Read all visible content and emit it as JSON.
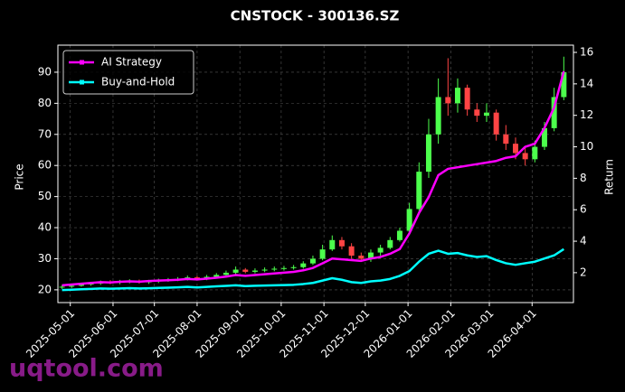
{
  "chart_data": {
    "type": "candlestick",
    "title": "CNSTOCK - 300136.SZ",
    "ylabel": "Price",
    "y2label": "Return",
    "watermark": "uqtool.com",
    "x": [
      "2025-04-25",
      "2025-05-02",
      "2025-05-09",
      "2025-05-16",
      "2025-05-23",
      "2025-05-30",
      "2025-06-06",
      "2025-06-13",
      "2025-06-20",
      "2025-06-27",
      "2025-07-04",
      "2025-07-11",
      "2025-07-18",
      "2025-07-25",
      "2025-08-01",
      "2025-08-08",
      "2025-08-15",
      "2025-08-22",
      "2025-08-29",
      "2025-09-05",
      "2025-09-12",
      "2025-09-19",
      "2025-09-26",
      "2025-10-03",
      "2025-10-10",
      "2025-10-17",
      "2025-10-24",
      "2025-10-31",
      "2025-11-07",
      "2025-11-14",
      "2025-11-21",
      "2025-11-28",
      "2025-12-05",
      "2025-12-12",
      "2025-12-19",
      "2025-12-26",
      "2026-01-02",
      "2026-01-09",
      "2026-01-16",
      "2026-01-23",
      "2026-01-30",
      "2026-02-06",
      "2026-02-13",
      "2026-02-20",
      "2026-02-27",
      "2026-03-06",
      "2026-03-13",
      "2026-03-20",
      "2026-03-27",
      "2026-04-03",
      "2026-04-10",
      "2026-04-17",
      "2026-04-24"
    ],
    "open": [
      20.8,
      21,
      21.3,
      21.8,
      22,
      22.5,
      22.3,
      22.6,
      22.8,
      22.4,
      22.7,
      23,
      23.2,
      23.5,
      24,
      23.6,
      24.2,
      24.8,
      25.5,
      26.5,
      25.8,
      26.2,
      26.5,
      26.8,
      27,
      27.3,
      28.5,
      30,
      33,
      36,
      34,
      31,
      30,
      32,
      33.5,
      36,
      39,
      46,
      58,
      70,
      82,
      80,
      85,
      78,
      76,
      77,
      70,
      67,
      64,
      62,
      66,
      72,
      82
    ],
    "high": [
      21.5,
      21.8,
      22.3,
      22.6,
      23,
      23.1,
      23.2,
      23.4,
      23.3,
      23.2,
      23.6,
      23.8,
      24.1,
      24.6,
      24.5,
      24.8,
      25.4,
      26.2,
      27.5,
      27,
      26.9,
      27.2,
      27.5,
      27.7,
      28,
      29.2,
      31,
      34.5,
      37.5,
      37,
      35,
      32,
      33,
      34.5,
      37,
      40,
      48,
      61,
      75,
      88,
      94.5,
      88,
      86,
      80,
      80,
      78,
      73,
      69,
      66,
      68,
      74,
      85,
      95
    ],
    "low": [
      20.3,
      20.6,
      21,
      21.3,
      21.6,
      21.8,
      21.8,
      22.1,
      22,
      21.9,
      22.2,
      22.6,
      22.8,
      23,
      23.2,
      23.1,
      23.7,
      24.3,
      25,
      25.3,
      25.3,
      25.7,
      26,
      26.2,
      26.5,
      26.8,
      28,
      29.5,
      32.5,
      33,
      30,
      29.5,
      29,
      31,
      33,
      35.5,
      38.5,
      45,
      56,
      67,
      76,
      77,
      76,
      74,
      74,
      68,
      65,
      62,
      60,
      61,
      65,
      71,
      81
    ],
    "close": [
      21,
      21.3,
      21.8,
      22,
      22.5,
      22.3,
      22.6,
      22.8,
      22.4,
      22.7,
      23,
      23.2,
      23.5,
      24,
      23.6,
      24.2,
      24.8,
      25.5,
      26.5,
      25.8,
      26.2,
      26.5,
      26.8,
      27,
      27.3,
      28.5,
      30,
      33,
      36,
      34,
      31,
      30,
      32,
      33.5,
      36,
      39,
      46,
      58,
      70,
      82,
      80,
      85,
      78,
      76,
      77,
      70,
      67,
      64,
      62,
      66,
      72,
      82,
      90
    ],
    "up_color": "#4cff4c",
    "down_color": "#ff4444",
    "series": [
      {
        "name": "AI Strategy",
        "color": "#ff00ff",
        "axis": "y2",
        "values": [
          1.2,
          1.25,
          1.3,
          1.35,
          1.4,
          1.38,
          1.42,
          1.45,
          1.43,
          1.47,
          1.5,
          1.52,
          1.55,
          1.6,
          1.57,
          1.62,
          1.68,
          1.75,
          1.85,
          1.8,
          1.85,
          1.9,
          1.95,
          2.0,
          2.05,
          2.15,
          2.3,
          2.6,
          2.9,
          2.85,
          2.8,
          2.75,
          2.9,
          3.0,
          3.2,
          3.5,
          4.5,
          5.8,
          6.8,
          8.2,
          8.6,
          8.7,
          8.8,
          8.9,
          9.0,
          9.1,
          9.3,
          9.4,
          10.0,
          10.2,
          11.2,
          12.5,
          14.8
        ]
      },
      {
        "name": "Buy-and-Hold",
        "color": "#00ffff",
        "axis": "y2",
        "values": [
          0.9,
          0.92,
          0.95,
          0.97,
          1.0,
          0.98,
          1.0,
          1.02,
          1.0,
          1.01,
          1.03,
          1.05,
          1.07,
          1.1,
          1.06,
          1.1,
          1.13,
          1.16,
          1.2,
          1.15,
          1.17,
          1.18,
          1.2,
          1.21,
          1.23,
          1.28,
          1.35,
          1.5,
          1.65,
          1.55,
          1.4,
          1.35,
          1.45,
          1.5,
          1.6,
          1.8,
          2.1,
          2.7,
          3.2,
          3.4,
          3.2,
          3.25,
          3.1,
          3.0,
          3.05,
          2.8,
          2.6,
          2.5,
          2.6,
          2.7,
          2.9,
          3.1,
          3.5
        ]
      }
    ],
    "xlim": [
      "2025-04-22",
      "2026-05-01"
    ],
    "xticks": [
      "2025-05-01",
      "2025-06-01",
      "2025-07-01",
      "2025-08-01",
      "2025-09-01",
      "2025-10-01",
      "2025-11-01",
      "2025-12-01",
      "2026-01-01",
      "2026-02-01",
      "2026-03-01",
      "2026-04-01"
    ],
    "ylim": [
      15.9,
      98.7
    ],
    "yticks": [
      20,
      30,
      40,
      50,
      60,
      70,
      80,
      90
    ],
    "y2lim": [
      0.1,
      16.46
    ],
    "y2ticks": [
      2,
      4,
      6,
      8,
      10,
      12,
      14,
      16
    ],
    "grid": true,
    "legend": "upper-left"
  }
}
